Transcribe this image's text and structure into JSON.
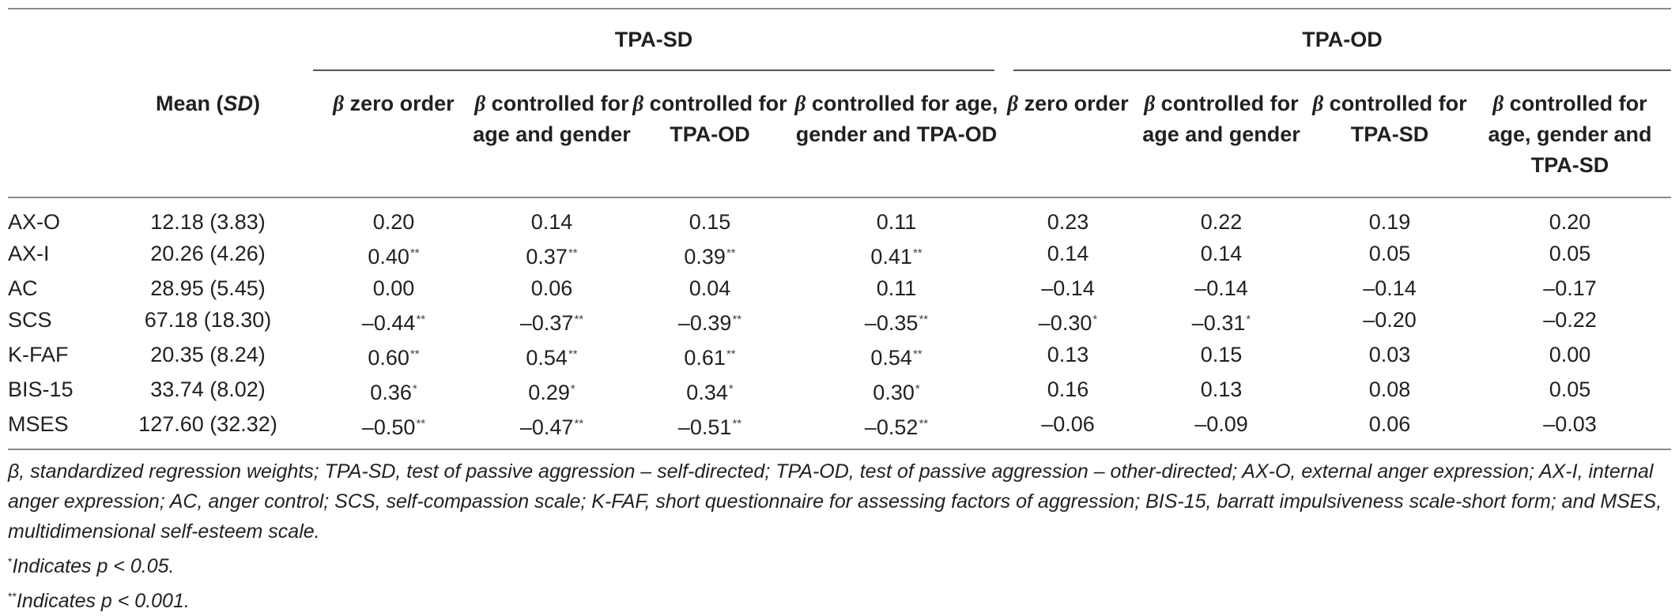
{
  "table": {
    "groups": {
      "sd": "TPA-SD",
      "od": "TPA-OD"
    },
    "headers": {
      "mean_prefix": "Mean (",
      "mean_sd": "SD",
      "mean_suffix": ")",
      "beta_symbol": "β",
      "sd_cols": [
        "zero order",
        "controlled for age and gender",
        "controlled for TPA-OD",
        "controlled for age, gender and TPA-OD"
      ],
      "od_cols": [
        "zero order",
        "controlled for age and gender",
        "controlled for TPA-SD",
        "controlled for age, gender and TPA-SD"
      ]
    },
    "rows": [
      {
        "label": "AX-O",
        "mean": "12.18 (3.83)",
        "sd": [
          [
            "0.20",
            ""
          ],
          [
            "0.14",
            ""
          ],
          [
            "0.15",
            ""
          ],
          [
            "0.11",
            ""
          ]
        ],
        "od": [
          [
            "0.23",
            ""
          ],
          [
            "0.22",
            ""
          ],
          [
            "0.19",
            ""
          ],
          [
            "0.20",
            ""
          ]
        ]
      },
      {
        "label": "AX-I",
        "mean": "20.26 (4.26)",
        "sd": [
          [
            "0.40",
            "**"
          ],
          [
            "0.37",
            "**"
          ],
          [
            "0.39",
            "**"
          ],
          [
            "0.41",
            "**"
          ]
        ],
        "od": [
          [
            "0.14",
            ""
          ],
          [
            "0.14",
            ""
          ],
          [
            "0.05",
            ""
          ],
          [
            "0.05",
            ""
          ]
        ]
      },
      {
        "label": "AC",
        "mean": "28.95 (5.45)",
        "sd": [
          [
            "0.00",
            ""
          ],
          [
            "0.06",
            ""
          ],
          [
            "0.04",
            ""
          ],
          [
            "0.11",
            ""
          ]
        ],
        "od": [
          [
            "–0.14",
            ""
          ],
          [
            "–0.14",
            ""
          ],
          [
            "–0.14",
            ""
          ],
          [
            "–0.17",
            ""
          ]
        ]
      },
      {
        "label": "SCS",
        "mean": "67.18 (18.30)",
        "sd": [
          [
            "–0.44",
            "**"
          ],
          [
            "–0.37",
            "**"
          ],
          [
            "–0.39",
            "**"
          ],
          [
            "–0.35",
            "**"
          ]
        ],
        "od": [
          [
            "–0.30",
            "*"
          ],
          [
            "–0.31",
            "*"
          ],
          [
            "–0.20",
            ""
          ],
          [
            "–0.22",
            ""
          ]
        ]
      },
      {
        "label": "K-FAF",
        "mean": "20.35 (8.24)",
        "sd": [
          [
            "0.60",
            "**"
          ],
          [
            "0.54",
            "**"
          ],
          [
            "0.61",
            "**"
          ],
          [
            "0.54",
            "**"
          ]
        ],
        "od": [
          [
            "0.13",
            ""
          ],
          [
            "0.15",
            ""
          ],
          [
            "0.03",
            ""
          ],
          [
            "0.00",
            ""
          ]
        ]
      },
      {
        "label": "BIS-15",
        "mean": "33.74 (8.02)",
        "sd": [
          [
            "0.36",
            "*"
          ],
          [
            "0.29",
            "*"
          ],
          [
            "0.34",
            "*"
          ],
          [
            "0.30",
            "*"
          ]
        ],
        "od": [
          [
            "0.16",
            ""
          ],
          [
            "0.13",
            ""
          ],
          [
            "0.08",
            ""
          ],
          [
            "0.05",
            ""
          ]
        ]
      },
      {
        "label": "MSES",
        "mean": "127.60 (32.32)",
        "sd": [
          [
            "–0.50",
            "**"
          ],
          [
            "–0.47",
            "**"
          ],
          [
            "–0.51",
            "**"
          ],
          [
            "–0.52",
            "**"
          ]
        ],
        "od": [
          [
            "–0.06",
            ""
          ],
          [
            "–0.09",
            ""
          ],
          [
            "0.06",
            ""
          ],
          [
            "–0.03",
            ""
          ]
        ]
      }
    ]
  },
  "notes": {
    "abbrev": "β, standardized regression weights; TPA-SD, test of passive aggression – self-directed; TPA-OD, test of passive aggression – other-directed; AX-O, external anger expression; AX-I, internal anger expression; AC, anger control; SCS, self-compassion scale; K-FAF, short questionnaire for assessing factors of aggression; BIS-15, barratt impulsiveness scale-short form; and MSES, multidimensional self-esteem scale.",
    "single_star": "*",
    "single_text": "Indicates p < 0.05.",
    "double_star": "**",
    "double_text": "Indicates p < 0.001."
  }
}
